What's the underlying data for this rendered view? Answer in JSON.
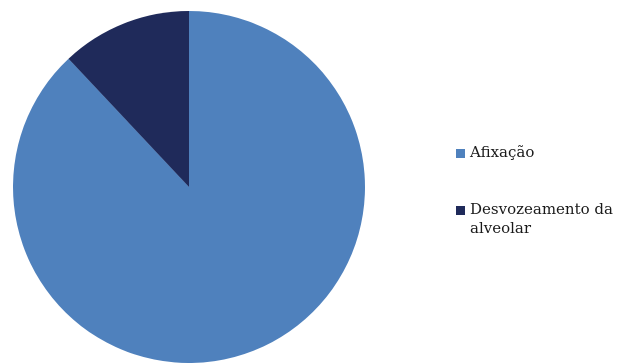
{
  "chart_data": {
    "type": "pie",
    "title": "",
    "start_angle_deg": 0,
    "direction": "clockwise",
    "slices": [
      {
        "label": "Afixação",
        "value": 88,
        "color": "#4f81bd"
      },
      {
        "label": "Desvozeamento da alveolar",
        "value": 12,
        "color": "#1f2a5a"
      }
    ],
    "legend_position": "right"
  }
}
